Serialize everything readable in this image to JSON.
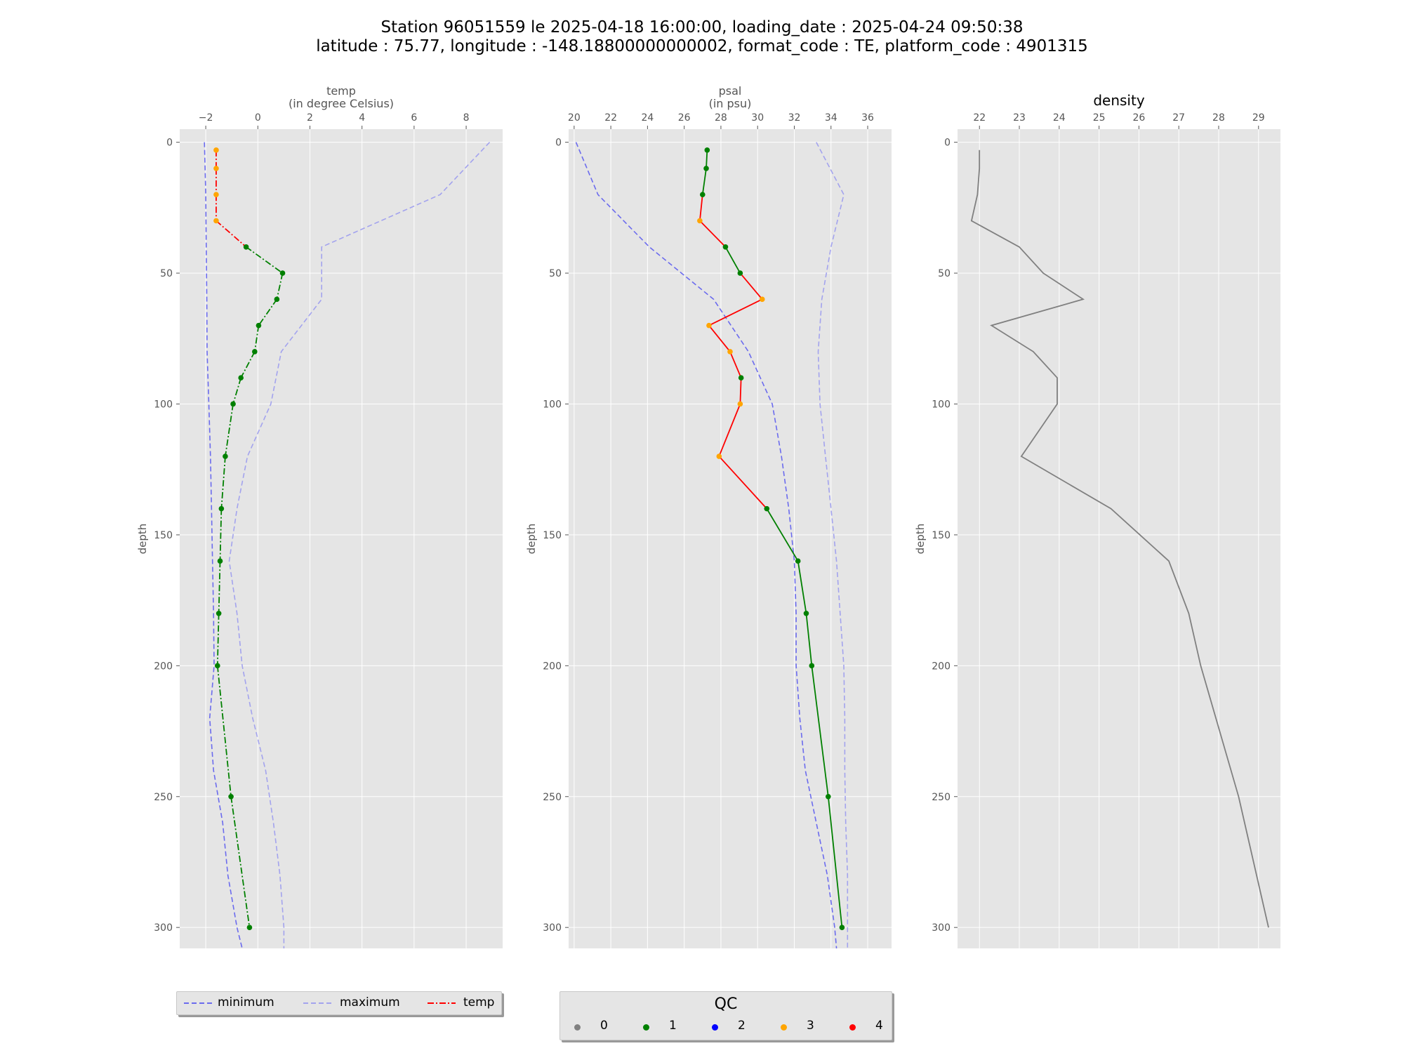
{
  "title_line1": "Station 96051559 le 2025-04-18 16:00:00, loading_date : 2025-04-24 09:50:38",
  "title_line2": "latitude : 75.77, longitude : -148.18800000000002, format_code : TE, platform_code : 4901315",
  "colors": {
    "panel_bg": "#e5e5e5",
    "grid": "#ffffff",
    "minimum": "#6b6bee",
    "maximum": "#a3a3ee",
    "qc0": "#808080",
    "qc1": "#008000",
    "qc2": "#0000ff",
    "qc3": "#ffa500",
    "qc4": "#ff0000",
    "density_line": "#808080"
  },
  "legend1": {
    "minimum": "minimum",
    "maximum": "maximum",
    "temp": "temp"
  },
  "legend2": {
    "title": "QC",
    "labels": [
      "0",
      "1",
      "2",
      "3",
      "4"
    ]
  },
  "chart_data": [
    {
      "type": "line",
      "title_line1": "temp",
      "title_line2": "(in degree Celsius)",
      "ylabel": "depth",
      "xlim": [
        -3.0,
        9.4
      ],
      "ylim": [
        308,
        -5
      ],
      "xticks": [
        -2,
        0,
        2,
        4,
        6,
        8
      ],
      "xtick_labels": [
        "−2",
        "0",
        "2",
        "4",
        "6",
        "8"
      ],
      "yticks": [
        0,
        50,
        100,
        150,
        200,
        250,
        300
      ],
      "minimum": {
        "depth": [
          0,
          20,
          40,
          60,
          80,
          100,
          120,
          140,
          160,
          180,
          200,
          220,
          240,
          260,
          280,
          300,
          308
        ],
        "value": [
          -2.05,
          -2.0,
          -1.98,
          -1.96,
          -1.95,
          -1.88,
          -1.82,
          -1.78,
          -1.74,
          -1.7,
          -1.68,
          -1.85,
          -1.7,
          -1.35,
          -1.15,
          -0.8,
          -0.6
        ]
      },
      "maximum": {
        "depth": [
          0,
          20,
          40,
          60,
          80,
          100,
          120,
          140,
          160,
          180,
          200,
          220,
          240,
          260,
          280,
          300,
          308
        ],
        "value": [
          8.9,
          7.0,
          2.45,
          2.45,
          0.9,
          0.5,
          -0.4,
          -0.8,
          -1.1,
          -0.8,
          -0.6,
          -0.2,
          0.3,
          0.6,
          0.85,
          1.0,
          1.0
        ]
      },
      "profile": {
        "depth": [
          3,
          10,
          20,
          30,
          40,
          50,
          60,
          70,
          80,
          90,
          100,
          120,
          140,
          160,
          180,
          200,
          250,
          300
        ],
        "value": [
          -1.6,
          -1.6,
          -1.6,
          -1.6,
          -0.45,
          0.95,
          0.73,
          0.03,
          -0.12,
          -0.65,
          -0.95,
          -1.25,
          -1.4,
          -1.45,
          -1.5,
          -1.55,
          -1.03,
          -0.32
        ],
        "qc": [
          3,
          3,
          3,
          3,
          1,
          1,
          1,
          1,
          1,
          1,
          1,
          1,
          1,
          1,
          1,
          1,
          1,
          1
        ]
      }
    },
    {
      "type": "line",
      "title_line1": "psal",
      "title_line2": "(in psu)",
      "ylabel": "depth",
      "xlim": [
        19.7,
        37.3
      ],
      "ylim": [
        308,
        -5
      ],
      "xticks": [
        20,
        22,
        24,
        26,
        28,
        30,
        32,
        34,
        36
      ],
      "xtick_labels": [
        "20",
        "22",
        "24",
        "26",
        "28",
        "30",
        "32",
        "34",
        "36"
      ],
      "yticks": [
        0,
        50,
        100,
        150,
        200,
        250,
        300
      ],
      "minimum": {
        "depth": [
          0,
          20,
          40,
          60,
          80,
          100,
          120,
          140,
          160,
          180,
          200,
          220,
          240,
          260,
          280,
          300,
          308
        ],
        "value": [
          20.1,
          21.3,
          24.1,
          27.6,
          29.5,
          30.8,
          31.3,
          31.7,
          32.0,
          32.1,
          32.1,
          32.3,
          32.6,
          33.2,
          33.8,
          34.2,
          34.3
        ]
      },
      "maximum": {
        "depth": [
          0,
          20,
          40,
          60,
          80,
          100,
          120,
          140,
          160,
          180,
          200,
          220,
          240,
          260,
          280,
          300,
          308
        ],
        "value": [
          33.2,
          34.7,
          34.0,
          33.5,
          33.3,
          33.4,
          33.7,
          34.0,
          34.3,
          34.5,
          34.7,
          34.75,
          34.75,
          34.8,
          34.9,
          34.9,
          34.9
        ]
      },
      "profile": {
        "depth": [
          3,
          10,
          20,
          30,
          40,
          50,
          60,
          70,
          80,
          90,
          100,
          120,
          140,
          160,
          180,
          200,
          250,
          300
        ],
        "value": [
          27.25,
          27.2,
          27.0,
          26.85,
          28.25,
          29.05,
          30.25,
          27.35,
          28.5,
          29.1,
          29.05,
          27.9,
          30.5,
          32.2,
          32.65,
          32.95,
          33.85,
          34.6
        ],
        "qc": [
          1,
          1,
          1,
          3,
          1,
          1,
          3,
          3,
          3,
          1,
          3,
          3,
          1,
          1,
          1,
          1,
          1,
          1
        ]
      }
    },
    {
      "type": "line",
      "title_line1": "density",
      "ylabel": "depth",
      "xlim": [
        21.45,
        29.55
      ],
      "ylim": [
        308,
        -5
      ],
      "xticks": [
        22,
        23,
        24,
        25,
        26,
        27,
        28,
        29
      ],
      "xtick_labels": [
        "22",
        "23",
        "24",
        "25",
        "26",
        "27",
        "28",
        "29"
      ],
      "yticks": [
        0,
        50,
        100,
        150,
        200,
        250,
        300
      ],
      "profile": {
        "depth": [
          3,
          10,
          20,
          30,
          40,
          50,
          60,
          70,
          80,
          90,
          100,
          120,
          140,
          160,
          180,
          200,
          250,
          300
        ],
        "value": [
          22.0,
          22.0,
          21.95,
          21.8,
          23.0,
          23.6,
          24.6,
          22.3,
          23.35,
          23.95,
          23.95,
          23.05,
          25.3,
          26.75,
          27.25,
          27.55,
          28.5,
          29.25
        ]
      }
    }
  ]
}
